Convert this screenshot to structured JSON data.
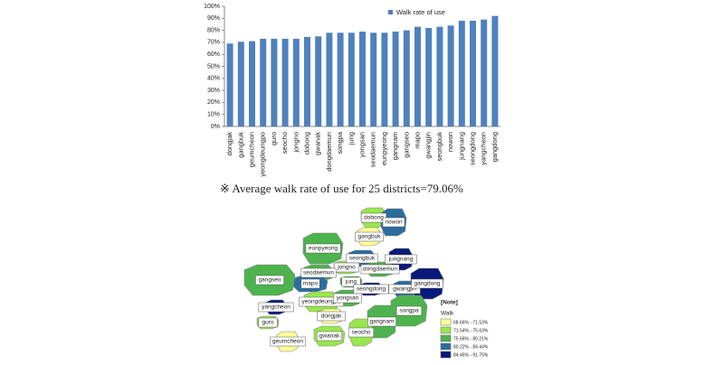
{
  "chart_data": {
    "type": "bar",
    "categories": [
      "dongjak",
      "gangbuk",
      "geumcheon",
      "yeongdeungpo",
      "guro",
      "seocho",
      "jongno",
      "dobong",
      "gwanak",
      "dongdaemun",
      "songpa",
      "jung",
      "yongsan",
      "seodaemun",
      "eunpyeong",
      "gangnam",
      "gangseo",
      "mapo",
      "gwangjin",
      "seongbuk",
      "nowon",
      "jungnang",
      "seongdong",
      "yangcheon",
      "gangdong"
    ],
    "series": [
      {
        "name": "Walk rate of use",
        "color": "#4f81bd",
        "values": [
          69,
          70.5,
          71,
          73,
          73,
          73,
          73,
          74.5,
          75,
          78,
          78,
          78,
          79,
          78,
          78,
          79,
          80,
          83,
          82,
          83,
          84,
          88,
          88,
          89,
          92
        ]
      }
    ],
    "ylim": [
      0,
      100
    ],
    "yticks": [
      {
        "value": 0,
        "label": "0%"
      },
      {
        "value": 10,
        "label": "10%"
      },
      {
        "value": 20,
        "label": "20%"
      },
      {
        "value": 30,
        "label": "30%"
      },
      {
        "value": 40,
        "label": "40%"
      },
      {
        "value": 50,
        "label": "50%"
      },
      {
        "value": 60,
        "label": "60%"
      },
      {
        "value": 70,
        "label": "70%"
      },
      {
        "value": 80,
        "label": "80%"
      },
      {
        "value": 90,
        "label": "90%"
      },
      {
        "value": 100,
        "label": "100%"
      }
    ],
    "grid": false,
    "legend": "top-right"
  },
  "caption": "※ Average walk rate of use for 25 districts=79.06%",
  "map": {
    "districts": [
      "dobong",
      "nowon",
      "gangbuk",
      "eunpyeong",
      "seongbuk",
      "jungnang",
      "jongno",
      "dongdaemun",
      "seodaemun",
      "mapo",
      "jung",
      "seongdong",
      "gwangjin",
      "gangdong",
      "gangseo",
      "yeongdeungpo",
      "yongsan",
      "songpa",
      "yangcheon",
      "guro",
      "dongjak",
      "gangnam",
      "seocho",
      "gwanak",
      "geumcheon"
    ],
    "legend_title": "[Note]",
    "legend_subtitle": "Walk",
    "legend": [
      "68.66% - 71.53%",
      "71.54% - 75.63%",
      "75.66% - 80.21%",
      "80.22% - 84.44%",
      "84.45% - 91.75%"
    ],
    "legend_colors": [
      "#ffff99",
      "#99e64d",
      "#4db34d",
      "#2a6e9e",
      "#0a1a7a"
    ]
  }
}
